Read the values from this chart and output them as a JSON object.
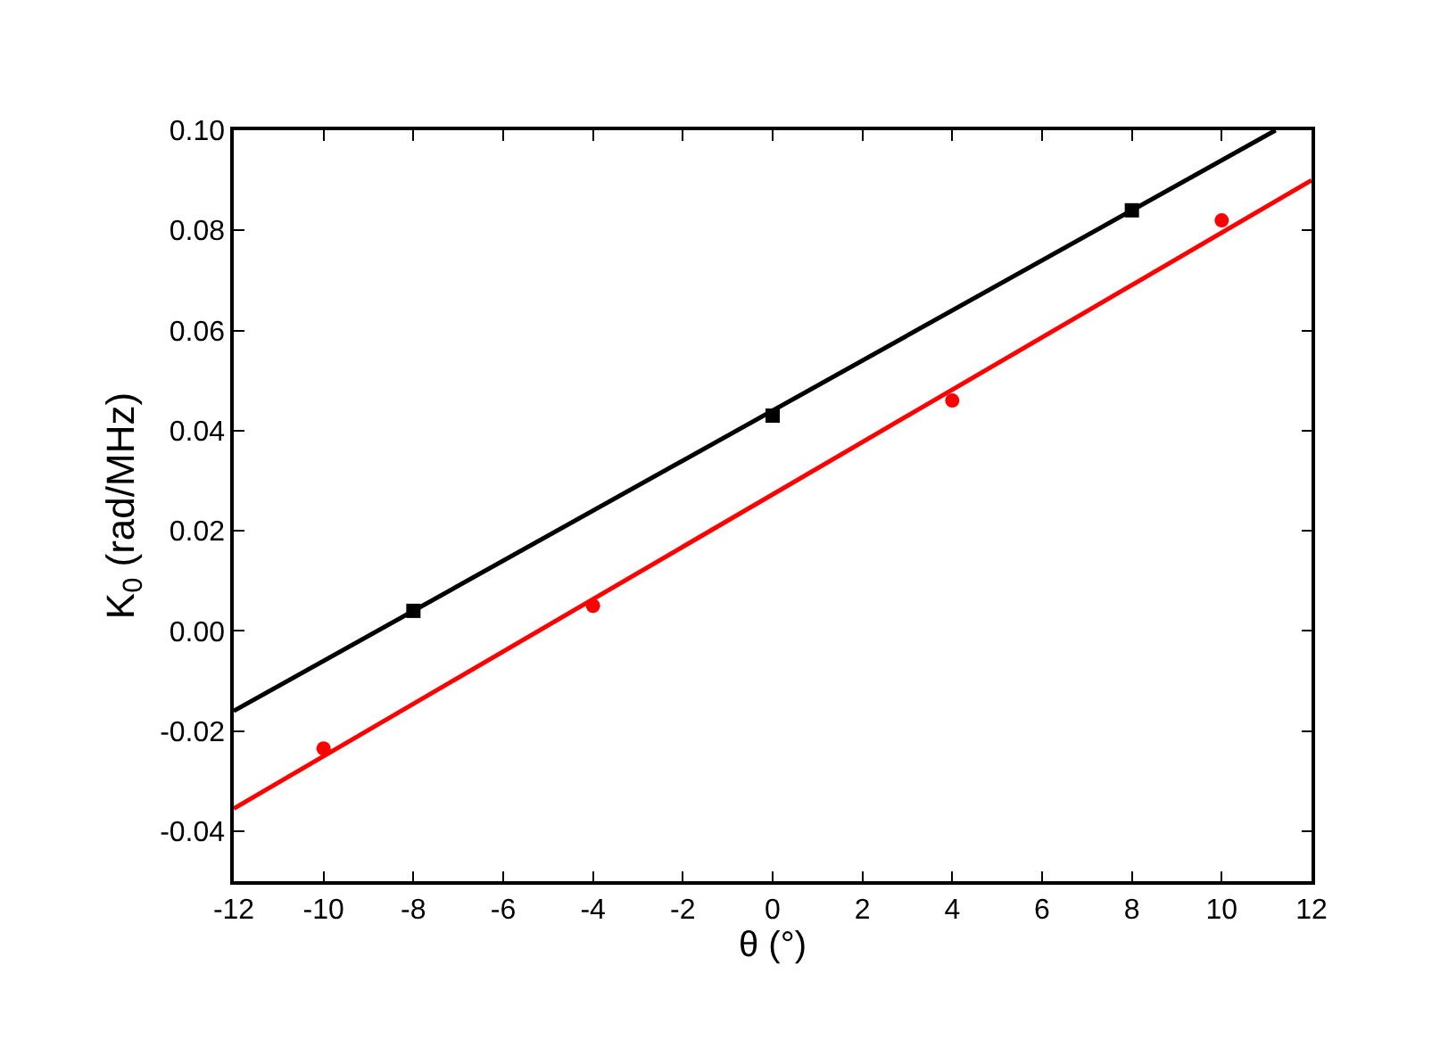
{
  "chart_data": {
    "type": "scatter",
    "xlabel": "θ (°)",
    "ylabel": "K$_{0}$ (rad/MHz)",
    "xlim": [
      -12,
      12
    ],
    "xticks": [
      -12,
      -10,
      -8,
      -6,
      -4,
      -2,
      0,
      2,
      4,
      6,
      8,
      10,
      12
    ],
    "ylim": [
      -0.05,
      0.1
    ],
    "yticks": [
      {
        "value": -0.04,
        "label": "-0.04"
      },
      {
        "value": -0.02,
        "label": "-0.02"
      },
      {
        "value": 0,
        "label": "0.00"
      },
      {
        "value": 0.02,
        "label": "0.02"
      },
      {
        "value": 0.04,
        "label": "0.04"
      },
      {
        "value": 0.06,
        "label": "0.06"
      },
      {
        "value": 0.08,
        "label": "0.08"
      },
      {
        "value": 0.1,
        "label": "0.10"
      }
    ],
    "series": [
      {
        "type": "line",
        "color": "#000000",
        "x": [
          -12,
          11.2
        ],
        "values": [
          -0.016,
          0.1
        ],
        "marker": "none",
        "line_style": "solid"
      },
      {
        "type": "line",
        "color": "#ff0000",
        "x": [
          -12,
          12
        ],
        "values": [
          -0.0355,
          0.09
        ],
        "marker": "none",
        "line_style": "solid"
      },
      {
        "color": "#000000",
        "x": [
          -8,
          0,
          8
        ],
        "values": [
          0.004,
          0.043,
          0.084
        ],
        "marker": "square"
      },
      {
        "color": "#ff0000",
        "x": [
          -10,
          -4,
          4,
          10
        ],
        "values": [
          -0.0235,
          0.005,
          0.046,
          0.082
        ],
        "marker": "circle"
      }
    ]
  }
}
